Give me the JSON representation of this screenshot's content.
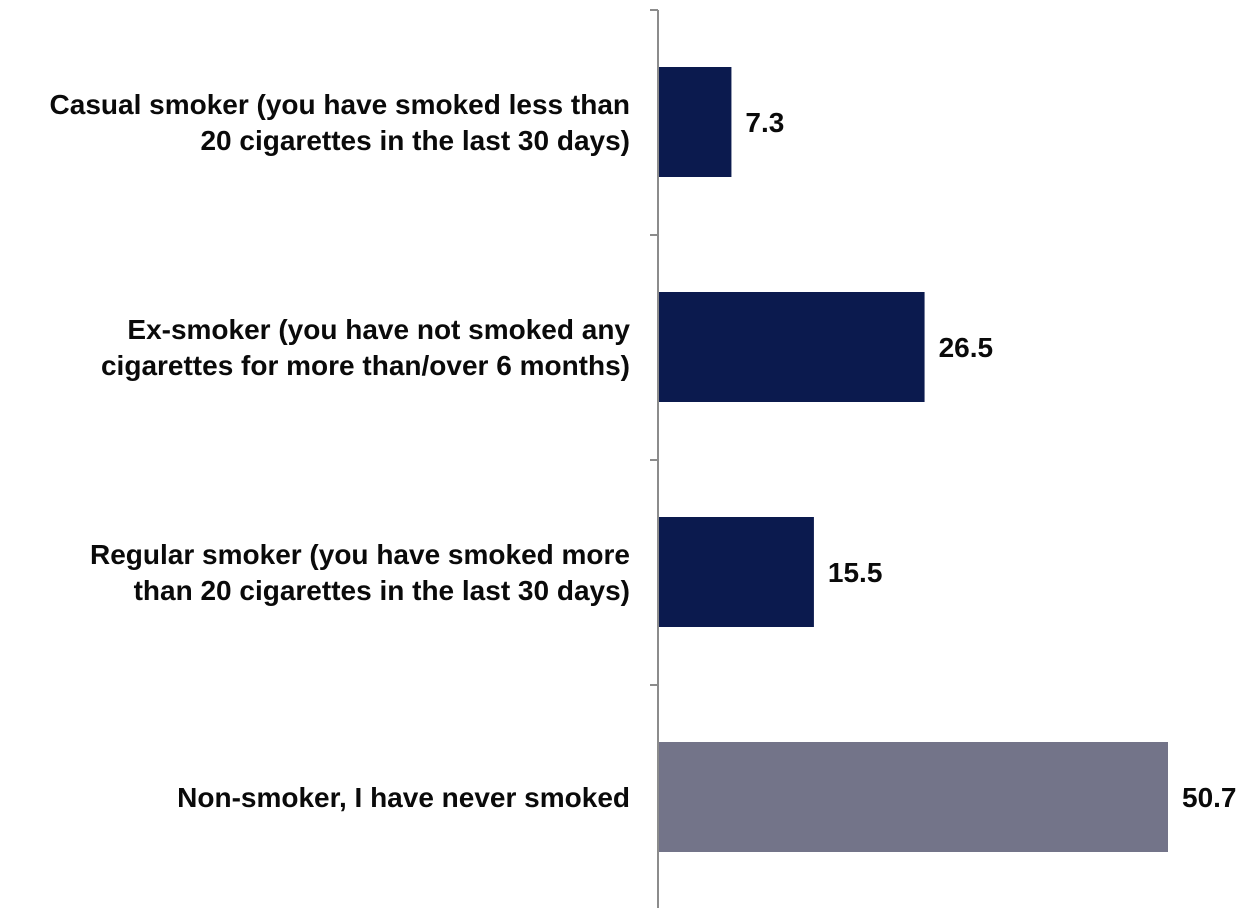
{
  "chart_data": {
    "type": "bar",
    "orientation": "horizontal",
    "categories": [
      [
        "Casual smoker (you have smoked less than",
        "20 cigarettes in the last 30 days)"
      ],
      [
        "Ex-smoker (you have not smoked any",
        "cigarettes for more than/over 6 months)"
      ],
      [
        "Regular smoker (you have smoked more",
        "than 20 cigarettes in the last 30 days)"
      ],
      [
        "Non-smoker, I have never smoked"
      ]
    ],
    "values": [
      7.3,
      26.5,
      15.5,
      50.7
    ],
    "value_labels": [
      "7.3",
      "26.5",
      "15.5",
      "50.7"
    ],
    "bar_colors": [
      "#0b1a4e",
      "#0b1a4e",
      "#0b1a4e",
      "#737489"
    ],
    "axis_color": "#8c8c8c",
    "title": "",
    "xlabel": "",
    "ylabel": "",
    "xlim": [
      0,
      50.7
    ],
    "grid": false,
    "legend": "none"
  }
}
